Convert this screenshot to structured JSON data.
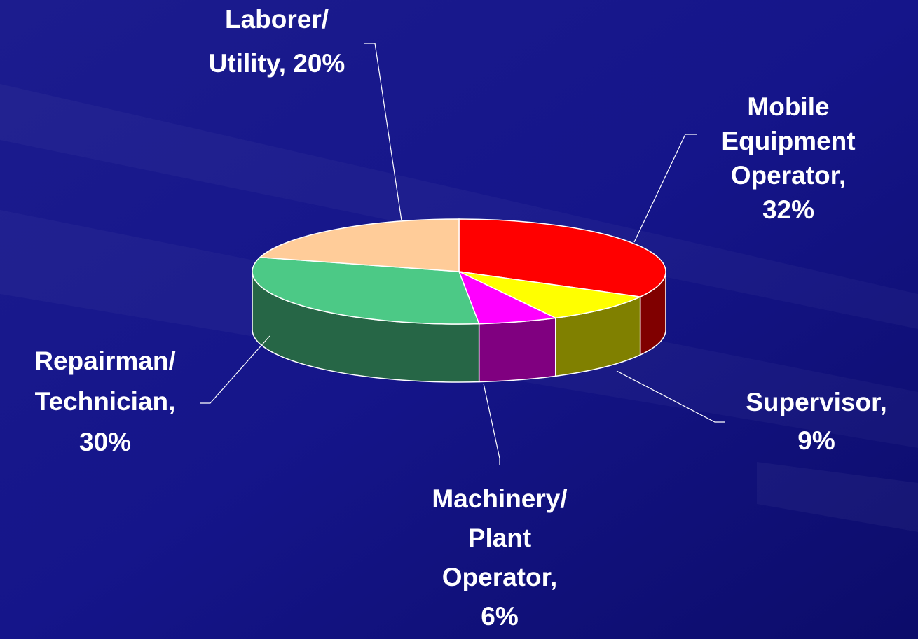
{
  "chart_data": {
    "type": "pie3d",
    "values": [
      32,
      9,
      6,
      30,
      20
    ],
    "value_labels": [
      "Mobile\nEquipment\nOperator,\n32%",
      "Supervisor,\n9%",
      "Machinery/\nPlant\nOperator,\n6%",
      "Repairman/\nTechnician,\n30%",
      "Laborer/\nUtility, 20%"
    ],
    "colors": [
      "#ff0000",
      "#ffff00",
      "#ff00ff",
      "#4cc986",
      "#ffcc99"
    ],
    "side_colors": [
      "#800000",
      "#808000",
      "#800080",
      "#266646",
      "#b08f6b"
    ]
  }
}
